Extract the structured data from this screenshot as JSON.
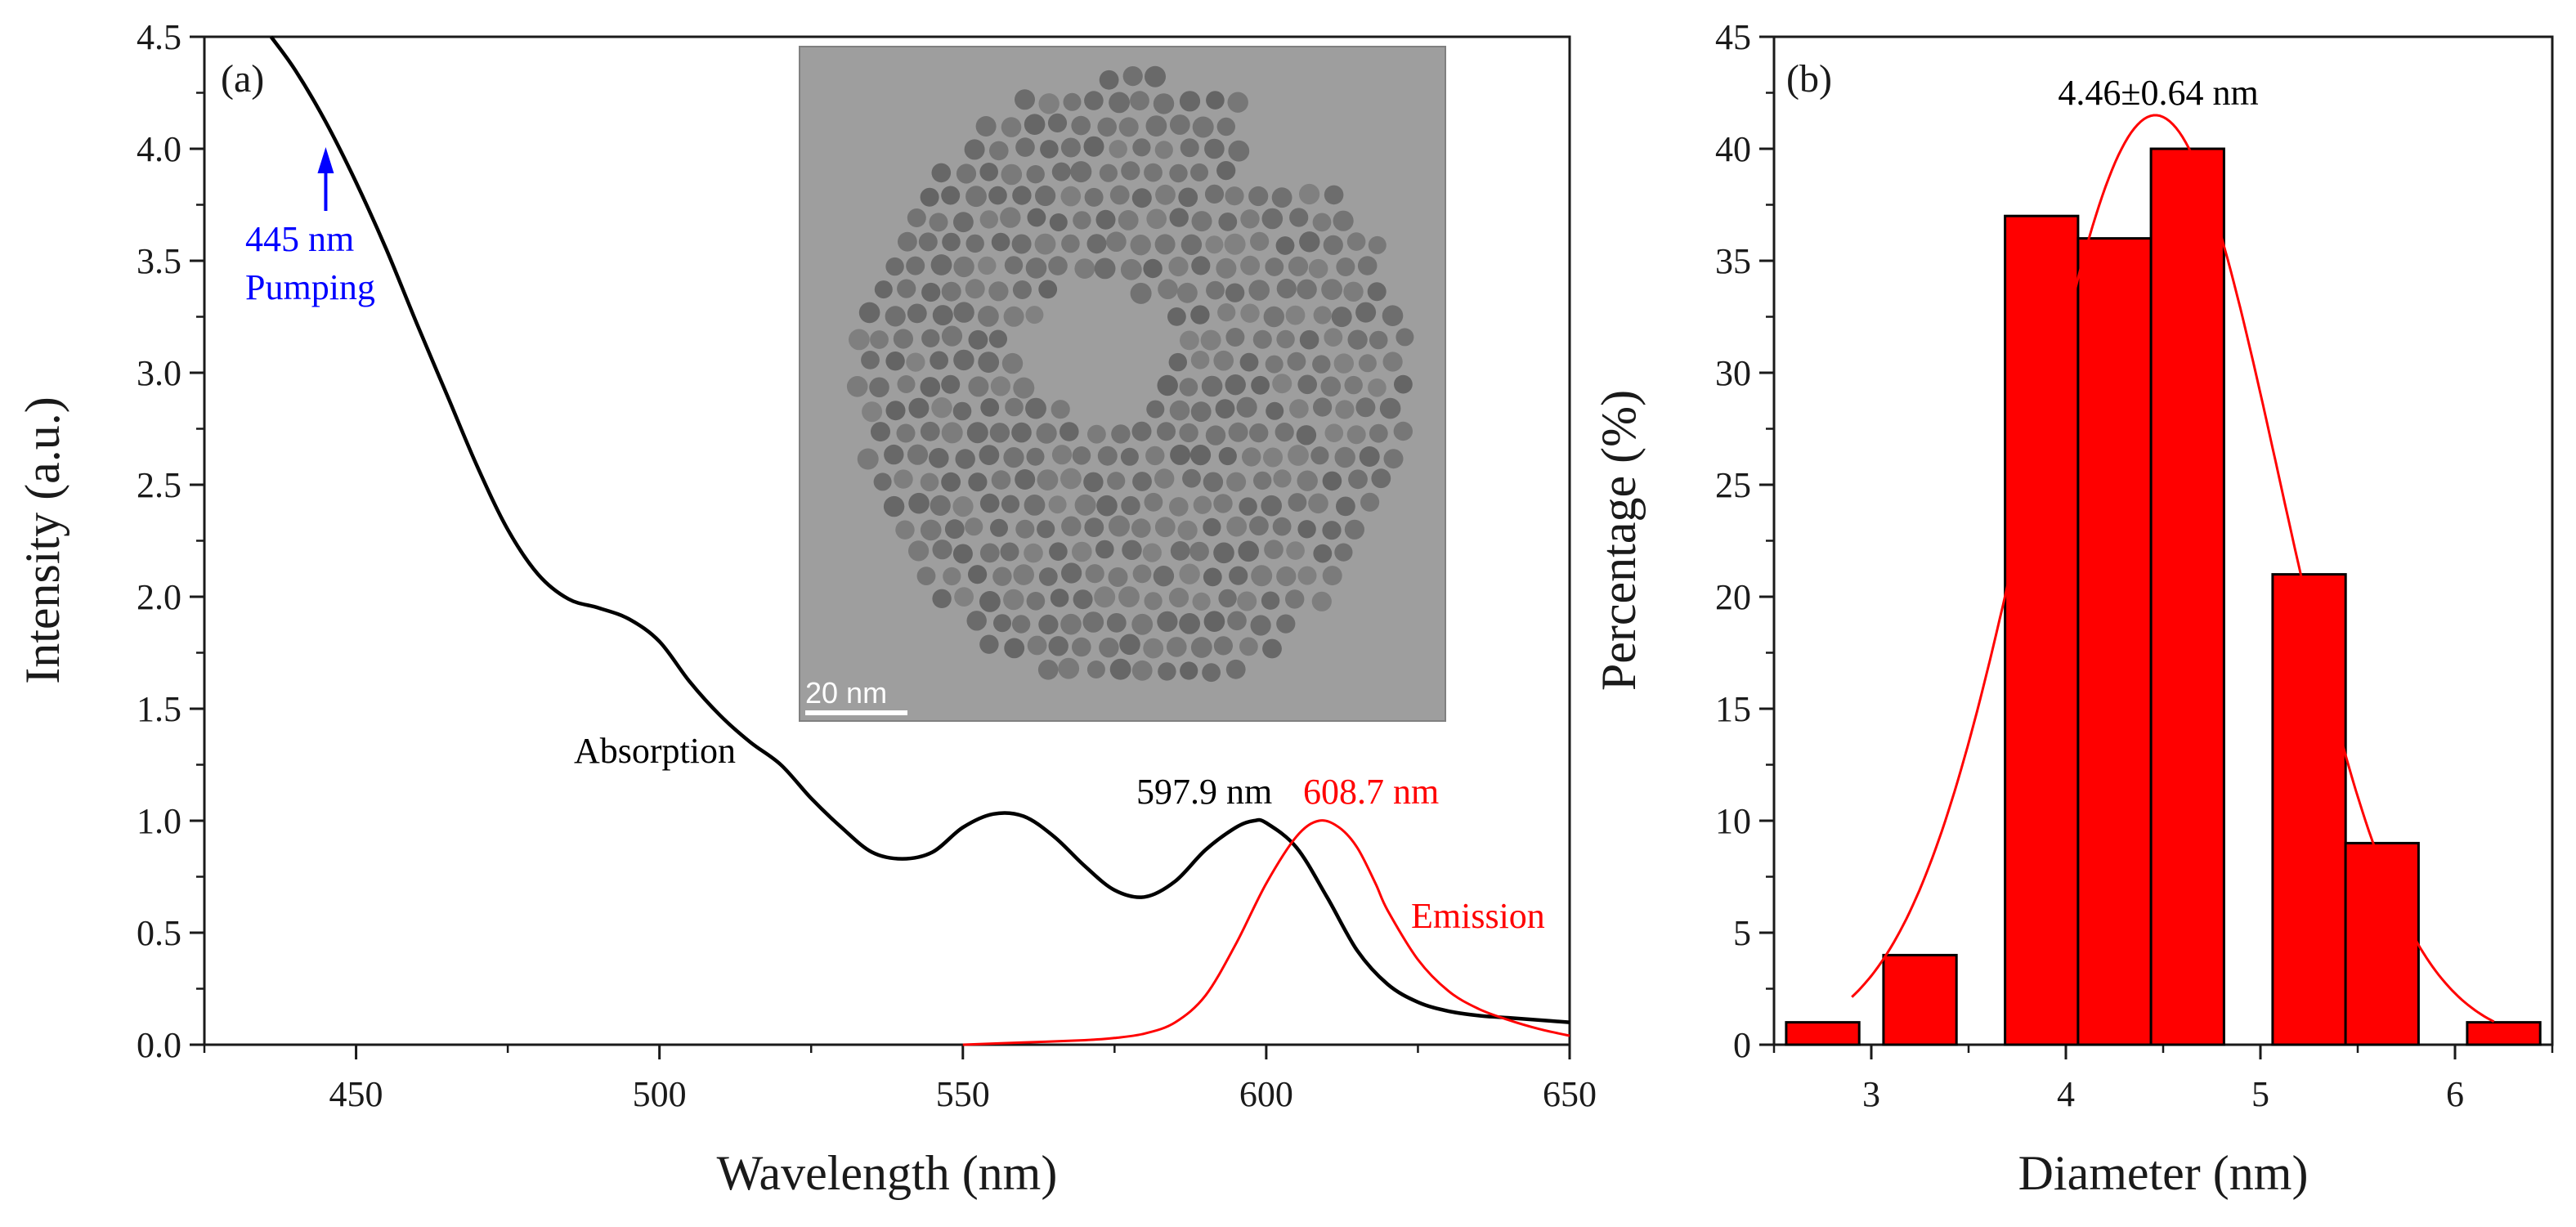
{
  "chart_data": [
    {
      "type": "line",
      "panel_label": "(a)",
      "xlabel": "Wavelength (nm)",
      "ylabel": "Intensity (a.u.)",
      "xlim": [
        425,
        650
      ],
      "ylim": [
        0.0,
        4.5
      ],
      "xticks": [
        "450",
        "500",
        "550",
        "600",
        "650"
      ],
      "yticks": [
        "0.0",
        "0.5",
        "1.0",
        "1.5",
        "2.0",
        "2.5",
        "3.0",
        "3.5",
        "4.0",
        "4.5"
      ],
      "series": [
        {
          "name": "Absorption",
          "color": "#000000",
          "x": [
            436,
            440,
            445,
            450,
            455,
            460,
            465,
            470,
            475,
            480,
            485,
            490,
            495,
            500,
            505,
            510,
            515,
            520,
            525,
            530,
            535,
            540,
            545,
            550,
            555,
            560,
            565,
            570,
            575,
            580,
            585,
            590,
            595,
            598,
            600,
            605,
            610,
            615,
            620,
            625,
            630,
            635,
            640,
            645,
            650
          ],
          "y": [
            4.5,
            4.35,
            4.12,
            3.85,
            3.55,
            3.22,
            2.9,
            2.58,
            2.3,
            2.1,
            1.99,
            1.95,
            1.9,
            1.8,
            1.62,
            1.47,
            1.35,
            1.25,
            1.1,
            0.97,
            0.86,
            0.83,
            0.86,
            0.97,
            1.03,
            1.02,
            0.93,
            0.8,
            0.69,
            0.66,
            0.73,
            0.87,
            0.97,
            1.0,
            0.99,
            0.88,
            0.66,
            0.42,
            0.27,
            0.19,
            0.15,
            0.13,
            0.12,
            0.11,
            0.1
          ]
        },
        {
          "name": "Emission",
          "color": "#ff0000",
          "x": [
            550,
            560,
            570,
            575,
            580,
            585,
            590,
            595,
            600,
            605,
            608.7,
            612,
            615,
            618,
            620,
            625,
            630,
            635,
            640,
            645,
            650
          ],
          "y": [
            0.0,
            0.01,
            0.02,
            0.03,
            0.05,
            0.1,
            0.22,
            0.45,
            0.72,
            0.93,
            1.0,
            0.97,
            0.88,
            0.72,
            0.6,
            0.38,
            0.24,
            0.16,
            0.11,
            0.07,
            0.04
          ]
        }
      ],
      "annotations": {
        "absorption_label": "Absorption",
        "emission_label": "Emission",
        "abs_peak_label": "597.9 nm",
        "em_peak_label": "608.7 nm",
        "pump_wavelength": "445 nm",
        "pump_text": "Pumping",
        "pump_x": 445
      },
      "inset": {
        "description_hidden": true,
        "scale_bar_label": "20 nm"
      }
    },
    {
      "type": "bar",
      "panel_label": "(b)",
      "xlabel": "Diameter (nm)",
      "ylabel": "Percentage (%)",
      "xlim": [
        2.5,
        6.5
      ],
      "ylim": [
        0,
        45
      ],
      "xticks": [
        "3",
        "4",
        "5",
        "6"
      ],
      "yticks": [
        "0",
        "5",
        "10",
        "15",
        "20",
        "25",
        "30",
        "35",
        "40",
        "45"
      ],
      "bin_width": 0.375,
      "bin_centers": [
        2.75,
        3.25,
        3.875,
        4.25,
        4.625,
        5.25,
        5.625,
        6.25
      ],
      "values": [
        1,
        4,
        37,
        36,
        40,
        21,
        9,
        1
      ],
      "fit_label": "4.46±0.64 nm",
      "fit": {
        "mean": 4.46,
        "sigma": 0.64,
        "peak": 41.5
      }
    }
  ],
  "colors": {
    "absorption": "#000000",
    "emission": "#ff0000",
    "pump": "#0000ff",
    "bars": "#ff0000",
    "fit": "#ff0000"
  }
}
